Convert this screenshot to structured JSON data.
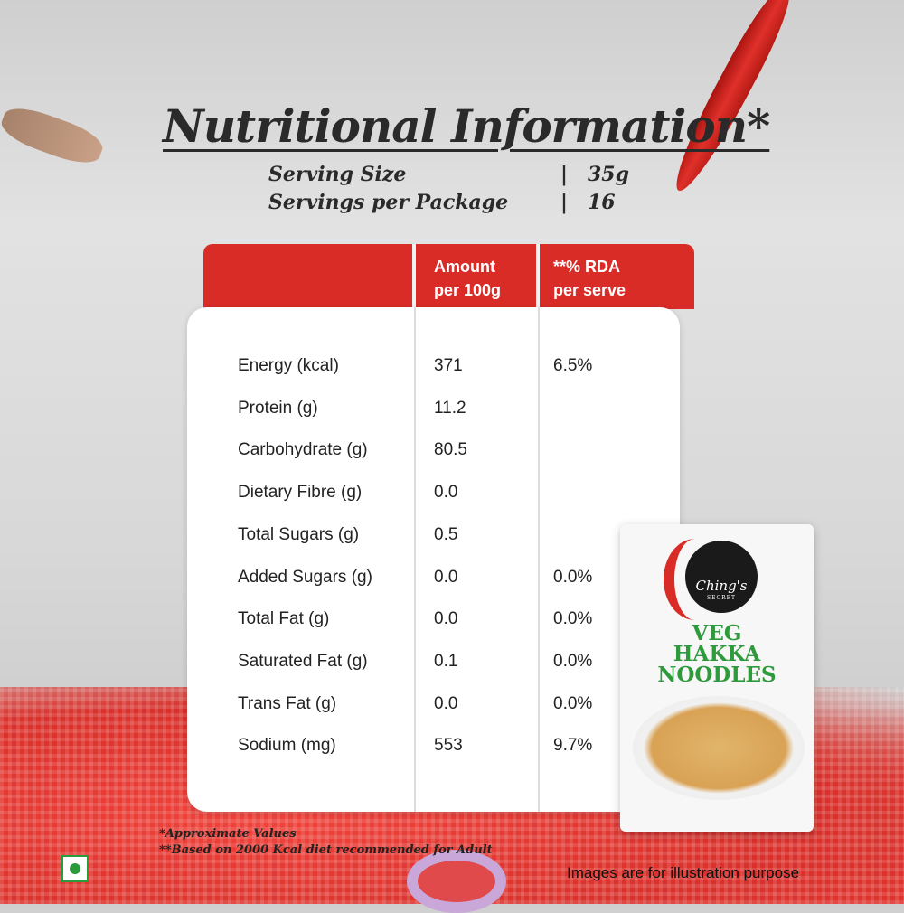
{
  "title": "Nutritional Information*",
  "serving": {
    "size_label": "Serving Size",
    "size_value": "35g",
    "per_pkg_label": "Servings per Package",
    "per_pkg_value": "16",
    "separator": "|"
  },
  "table": {
    "headers": [
      "",
      "Amount\nper 100g",
      "**% RDA\nper serve"
    ],
    "header_amount": [
      "Amount",
      "per 100g"
    ],
    "header_rda": [
      "**% RDA",
      "per serve"
    ],
    "rows": [
      {
        "label": "Energy (kcal)",
        "amount": "371",
        "rda": "6.5%"
      },
      {
        "label": "Protein (g)",
        "amount": "11.2",
        "rda": ""
      },
      {
        "label": "Carbohydrate (g)",
        "amount": "80.5",
        "rda": ""
      },
      {
        "label": "Dietary Fibre (g)",
        "amount": "0.0",
        "rda": ""
      },
      {
        "label": "Total Sugars (g)",
        "amount": "0.5",
        "rda": ""
      },
      {
        "label": "Added Sugars (g)",
        "amount": "0.0",
        "rda": "0.0%"
      },
      {
        "label": "Total Fat (g)",
        "amount": "0.0",
        "rda": "0.0%"
      },
      {
        "label": "Saturated Fat (g)",
        "amount": "0.1",
        "rda": "0.0%"
      },
      {
        "label": "Trans Fat (g)",
        "amount": "0.0",
        "rda": "0.0%"
      },
      {
        "label": "Sodium (mg)",
        "amount": "553",
        "rda": "9.7%"
      }
    ]
  },
  "footnotes": [
    "*Approximate Values",
    "**Based on 2000 Kcal diet recommended for Adult"
  ],
  "disclaimer": "Images are for illustration purpose",
  "product": {
    "brand": "Ching's",
    "brand_sub": "SECRET",
    "name": [
      "VEG",
      "HAKKA",
      "NOODLES"
    ]
  },
  "colors": {
    "header_red": "#d92c27",
    "product_green": "#2f9a3c",
    "veg_mark": "#2a9a3a"
  }
}
